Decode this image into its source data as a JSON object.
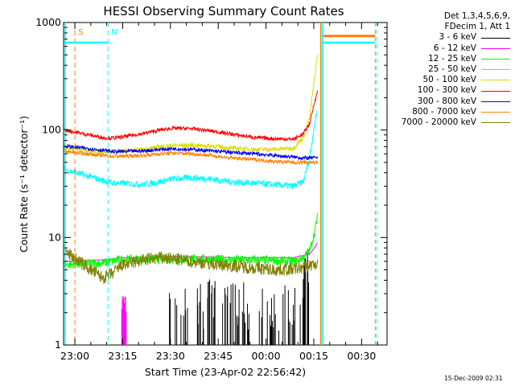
{
  "chart_data": {
    "type": "line",
    "title": "HESSI Observing Summary Count Rates",
    "xlabel": "Start Time (23-Apr-02 22:56:42)",
    "ylabel": "Count Rate (s⁻¹ detector⁻¹)",
    "yscale": "log",
    "ylim": [
      1,
      1000
    ],
    "xlim": [
      "22:56:42",
      "00:38:00"
    ],
    "x_ticks": [
      "23:00",
      "23:15",
      "23:30",
      "23:45",
      "00:00",
      "00:15",
      "00:30"
    ],
    "y_ticks": [
      "1",
      "10",
      "100",
      "1000"
    ],
    "x_minutes": [
      0,
      12,
      15,
      18,
      25,
      30,
      34,
      40,
      46,
      52,
      60,
      66,
      72,
      75,
      77,
      78.5,
      79.5
    ],
    "series": [
      {
        "name": "3 - 6 keV",
        "color": "#000000",
        "values": [
          1,
          1,
          1,
          1,
          1,
          1,
          1.2,
          1.3,
          1.5,
          1.6,
          1.3,
          1.2,
          1.5,
          2.5,
          3.0,
          4.0,
          4.5
        ]
      },
      {
        "name": "6 - 12 keV",
        "color": "#ff00ff",
        "values": [
          6,
          6.2,
          6.3,
          6.5,
          6.5,
          6.6,
          6.7,
          6.6,
          6.6,
          6.5,
          6.5,
          6.5,
          6.5,
          6.8,
          7.0,
          8.0,
          9.0
        ]
      },
      {
        "name": "12 - 25 keV",
        "color": "#00ff00",
        "values": [
          5.6,
          5.8,
          6.0,
          6.2,
          6.3,
          6.3,
          6.3,
          6.3,
          6.3,
          6.2,
          6.2,
          6.1,
          6.0,
          6.5,
          7.5,
          11,
          16
        ]
      },
      {
        "name": "25 - 50 keV",
        "color": "#00ffff",
        "values": [
          43,
          34,
          32,
          32,
          31,
          33,
          35,
          36,
          35,
          33,
          32,
          31,
          30,
          33,
          55,
          110,
          160
        ]
      },
      {
        "name": "50 - 100 keV",
        "color": "#dddd00",
        "values": [
          68,
          63,
          62,
          63,
          66,
          70,
          72,
          72,
          71,
          68,
          66,
          66,
          68,
          85,
          130,
          300,
          520
        ]
      },
      {
        "name": "100 - 300 keV",
        "color": "#ff0000",
        "values": [
          100,
          85,
          84,
          86,
          93,
          100,
          104,
          103,
          98,
          92,
          85,
          83,
          82,
          92,
          115,
          180,
          230
        ]
      },
      {
        "name": "300 - 800 keV",
        "color": "#0000ff",
        "values": [
          71,
          65,
          63,
          63,
          64,
          66,
          67,
          66,
          64,
          62,
          60,
          58,
          56,
          55,
          55,
          55,
          56
        ]
      },
      {
        "name": "800 - 7000 keV",
        "color": "#ff8000",
        "values": [
          63,
          58,
          57,
          57,
          58,
          60,
          61,
          60,
          58,
          55,
          53,
          51,
          50,
          50,
          50,
          50,
          50
        ]
      },
      {
        "name": "7000 - 20000 keV",
        "color": "#808000",
        "values": [
          7.5,
          4.2,
          4.6,
          5.5,
          6.2,
          6.5,
          6.3,
          6.0,
          5.7,
          5.5,
          5.2,
          5.0,
          5.1,
          5.3,
          5.5,
          5.6,
          5.7
        ]
      }
    ],
    "markers": [
      {
        "label": "S",
        "x_minutes": 3.3,
        "color": "#ff8000",
        "level": 750
      },
      {
        "label": "N",
        "x_minutes": 13.7,
        "color": "#00ffff",
        "level": 650
      }
    ],
    "eclipse_after_minutes": 80.5,
    "grid": false
  },
  "legend_header": [
    "Det 1,3,4,5,6,9,",
    "FDecim 1, Att 1"
  ],
  "footer_date": "15-Dec-2009 02:31"
}
